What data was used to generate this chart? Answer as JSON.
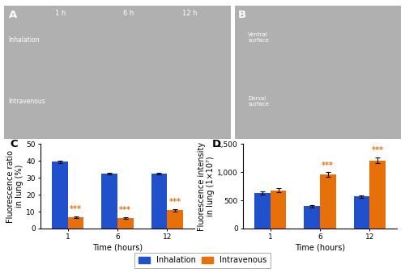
{
  "C": {
    "label": "C",
    "time_points": [
      "1",
      "6",
      "12"
    ],
    "inhalation_means": [
      39.5,
      32.5,
      32.5
    ],
    "inhalation_errors": [
      0.6,
      0.7,
      0.6
    ],
    "intravenous_means": [
      6.5,
      6.2,
      10.8
    ],
    "intravenous_errors": [
      0.5,
      0.4,
      0.6
    ],
    "ylabel": "Fluorescence ratio\nin lung (%)",
    "xlabel": "Time (hours)",
    "ylim": [
      0,
      50
    ],
    "yticks": [
      0,
      10,
      20,
      30,
      40,
      50
    ],
    "ytick_labels": [
      "0",
      "10",
      "20",
      "30",
      "40",
      "50"
    ],
    "significance": [
      "***",
      "***",
      "***"
    ],
    "sig_offsets": [
      2.0,
      2.0,
      2.0
    ]
  },
  "D": {
    "label": "D",
    "time_points": [
      "1",
      "6",
      "12"
    ],
    "inhalation_means": [
      630,
      400,
      570
    ],
    "inhalation_errors": [
      28,
      22,
      22
    ],
    "intravenous_means": [
      680,
      960,
      1210
    ],
    "intravenous_errors": [
      32,
      48,
      52
    ],
    "ylabel": "Fluorescence intensity\nin lung (1×10⁷)",
    "xlabel": "Time (hours)",
    "ylim": [
      0,
      1500
    ],
    "yticks": [
      0,
      500,
      1000,
      1500
    ],
    "ytick_labels": [
      "0",
      "500",
      "1,000",
      "1,500"
    ],
    "significance": [
      "",
      "***",
      "***"
    ],
    "sig_offsets": [
      0,
      45,
      55
    ]
  },
  "blue_color": "#2050cc",
  "orange_color": "#e8700a",
  "bar_width": 0.32,
  "legend_labels": [
    "Inhalation",
    "Intravenous"
  ],
  "fontsize_label": 7.0,
  "fontsize_tick": 6.5,
  "fontsize_sig": 7.0,
  "fontsize_panel": 9.5,
  "fontsize_legend": 7.0,
  "img_bg_color": "#b0b0b0",
  "img_text_color": "#505050"
}
